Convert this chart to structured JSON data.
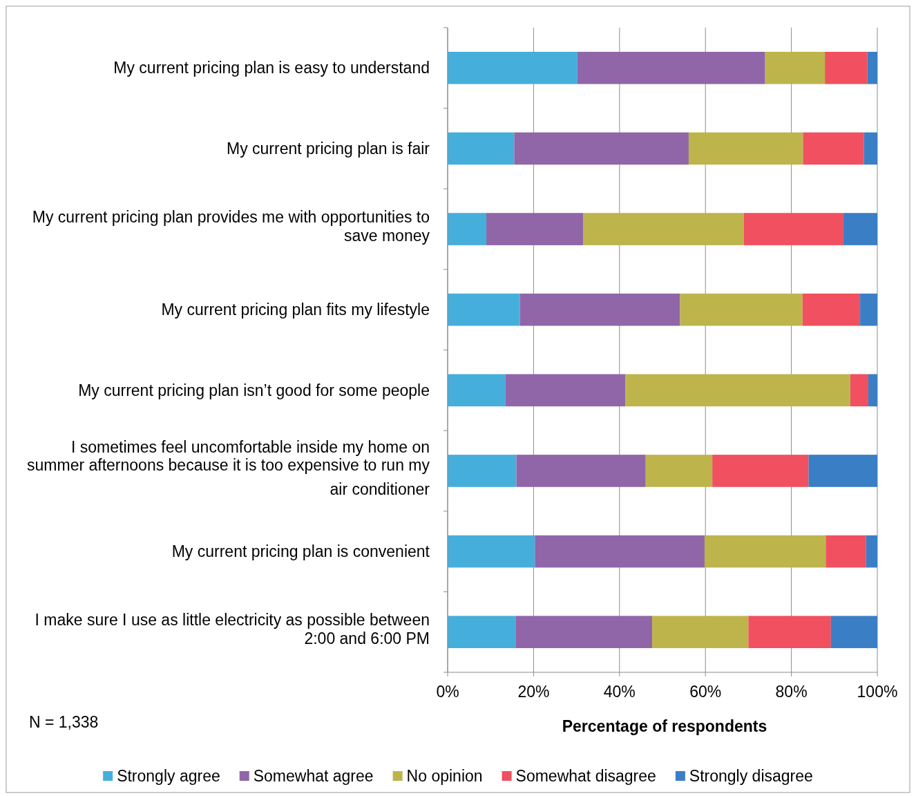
{
  "chart_data": {
    "type": "bar",
    "orientation": "horizontal",
    "stacked": true,
    "categories": [
      "My current pricing plan is easy to understand",
      "My current pricing plan is fair",
      "My current pricing plan provides me with opportunities to save money",
      "My current pricing plan fits my lifestyle",
      "My current pricing plan isn’t good for some people",
      "I sometimes feel uncomfortable inside my home on summer afternoons because it is too expensive to run my air conditioner",
      "My current pricing plan is convenient",
      "I make sure I use as little electricity as possible between 2:00 and 6:00 PM"
    ],
    "series": [
      {
        "name": "Strongly agree",
        "color": "#46aedb",
        "values": [
          30.2,
          15.5,
          9,
          16.8,
          13.4,
          16,
          20.3,
          15.8
        ]
      },
      {
        "name": "Somewhat agree",
        "color": "#9066a8",
        "values": [
          43.7,
          40.6,
          22.6,
          37.3,
          28,
          30.1,
          39.5,
          31.8
        ]
      },
      {
        "name": "No opinion",
        "color": "#bdb54c",
        "values": [
          13.9,
          26.6,
          37.3,
          28.5,
          52.3,
          15.5,
          28.2,
          22.4
        ]
      },
      {
        "name": "Somewhat disagree",
        "color": "#f0505f",
        "values": [
          9.9,
          14.2,
          23.2,
          13.4,
          4.2,
          22.4,
          9.4,
          19.2
        ]
      },
      {
        "name": "Strongly disagree",
        "color": "#3a7ec6",
        "values": [
          2.3,
          3.1,
          7.9,
          4,
          2.1,
          16,
          2.6,
          10.8
        ]
      }
    ],
    "xlim": [
      0,
      100
    ],
    "xticks": [
      {
        "value": 0,
        "label": "0%"
      },
      {
        "value": 20,
        "label": "20%"
      },
      {
        "value": 40,
        "label": "40%"
      },
      {
        "value": 60,
        "label": "60%"
      },
      {
        "value": 80,
        "label": "80%"
      },
      {
        "value": 100,
        "label": "100%"
      }
    ],
    "xlabel": "Percentage of respondents",
    "annotations": [
      "N = 1,338"
    ],
    "grid": "x",
    "legend": "bottom"
  }
}
